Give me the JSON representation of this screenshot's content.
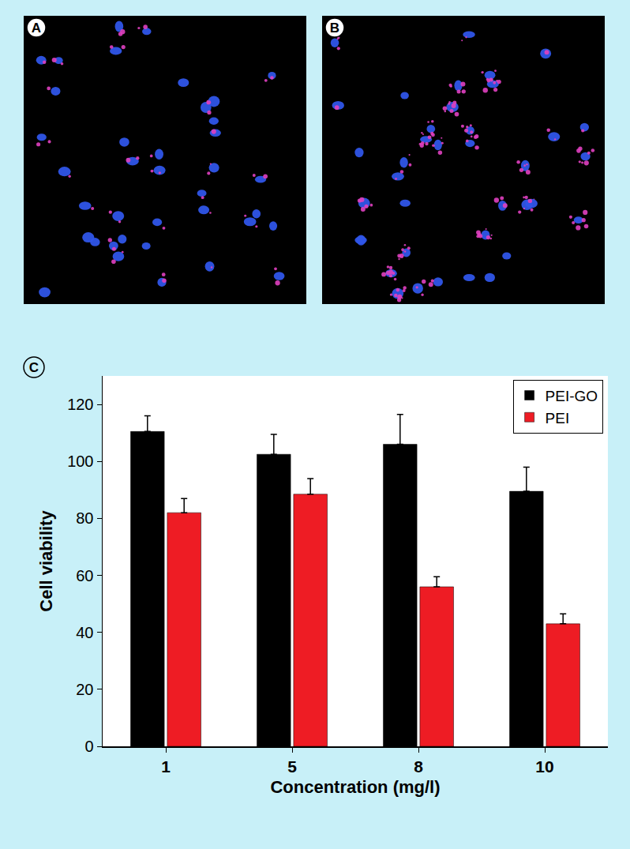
{
  "panel_labels": [
    "A",
    "B",
    "C"
  ],
  "chart_data": {
    "type": "bar",
    "categories": [
      "1",
      "5",
      "8",
      "10"
    ],
    "series": [
      {
        "name": "PEI-GO",
        "color": "#000000",
        "values": [
          110.5,
          102.5,
          106,
          89.5
        ],
        "error": [
          5.5,
          7,
          10.5,
          8.5
        ]
      },
      {
        "name": "PEI",
        "color": "#ee1c24",
        "values": [
          82,
          88.5,
          56,
          43
        ],
        "error": [
          5,
          5.5,
          3.5,
          3.5
        ]
      }
    ],
    "xlabel": "Concentration (mg/l)",
    "ylabel": "Cell viability",
    "ylim": [
      0,
      130
    ],
    "yticks": [
      0,
      20,
      40,
      60,
      80,
      100,
      120
    ],
    "legend": "top-right",
    "grid": false
  }
}
